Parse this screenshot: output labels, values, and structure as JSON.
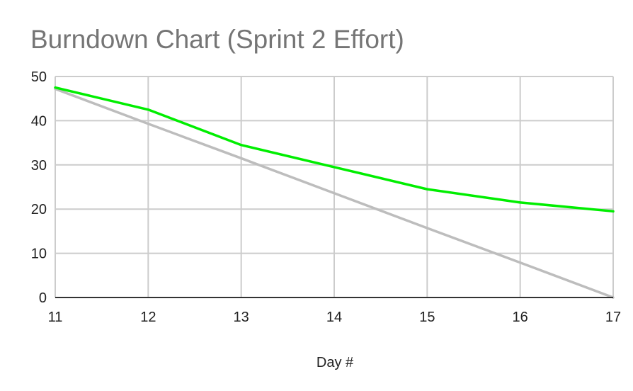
{
  "chart_data": {
    "type": "line",
    "title": "Burndown Chart (Sprint 2 Effort)",
    "xlabel": "Day #",
    "ylabel": "",
    "x": [
      11,
      12,
      13,
      14,
      15,
      16,
      17
    ],
    "xlim": [
      11,
      17
    ],
    "ylim": [
      0,
      50
    ],
    "y_ticks": [
      0,
      10,
      20,
      30,
      40,
      50
    ],
    "x_ticks": [
      11,
      12,
      13,
      14,
      15,
      16,
      17
    ],
    "grid": true,
    "legend": "none",
    "series": [
      {
        "values": [
          47.5,
          42.5,
          34.5,
          29.5,
          24.5,
          21.5,
          19.5
        ],
        "color": "#00ee00"
      },
      {
        "values": [
          47.2,
          39.3,
          31.5,
          23.6,
          15.7,
          7.9,
          0
        ],
        "color": "#bdbdbd"
      }
    ],
    "colors": {
      "grid": "#cccccc",
      "axis": "#333333",
      "title": "#757575",
      "text": "#222222"
    }
  }
}
